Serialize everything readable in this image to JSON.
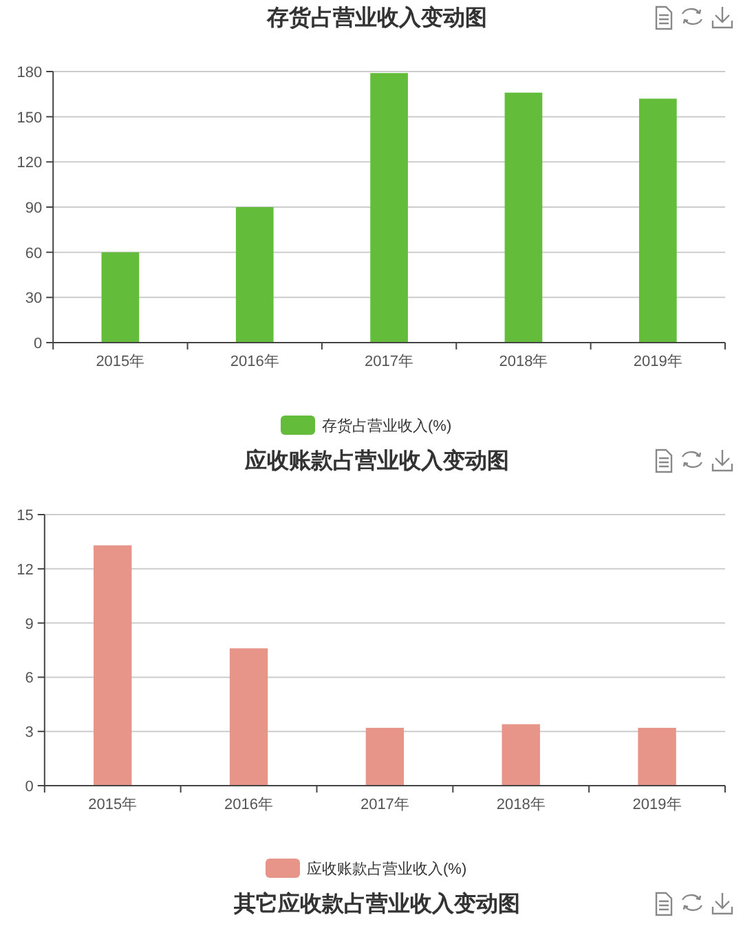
{
  "chart_data": [
    {
      "type": "bar",
      "title": "存货占营业收入变动图",
      "categories": [
        "2015年",
        "2016年",
        "2017年",
        "2018年",
        "2019年"
      ],
      "series": [
        {
          "name": "存货占营业收入(%)",
          "color": "#63bd3b",
          "values": [
            60,
            90,
            179,
            166,
            162
          ]
        }
      ],
      "ylim": [
        0,
        180
      ],
      "yticks": [
        0,
        30,
        60,
        90,
        120,
        150,
        180
      ],
      "grid": "y",
      "legend": "bottom"
    },
    {
      "type": "bar",
      "title": "应收账款占营业收入变动图",
      "categories": [
        "2015年",
        "2016年",
        "2017年",
        "2018年",
        "2019年"
      ],
      "series": [
        {
          "name": "应收账款占营业收入(%)",
          "color": "#e79489",
          "values": [
            13.3,
            7.6,
            3.2,
            3.4,
            3.2
          ]
        }
      ],
      "ylim": [
        0,
        15
      ],
      "yticks": [
        0,
        3,
        6,
        9,
        12,
        15
      ],
      "grid": "y",
      "legend": "bottom"
    },
    {
      "type": "other",
      "title": "其它应收款占营业收入变动图"
    }
  ]
}
